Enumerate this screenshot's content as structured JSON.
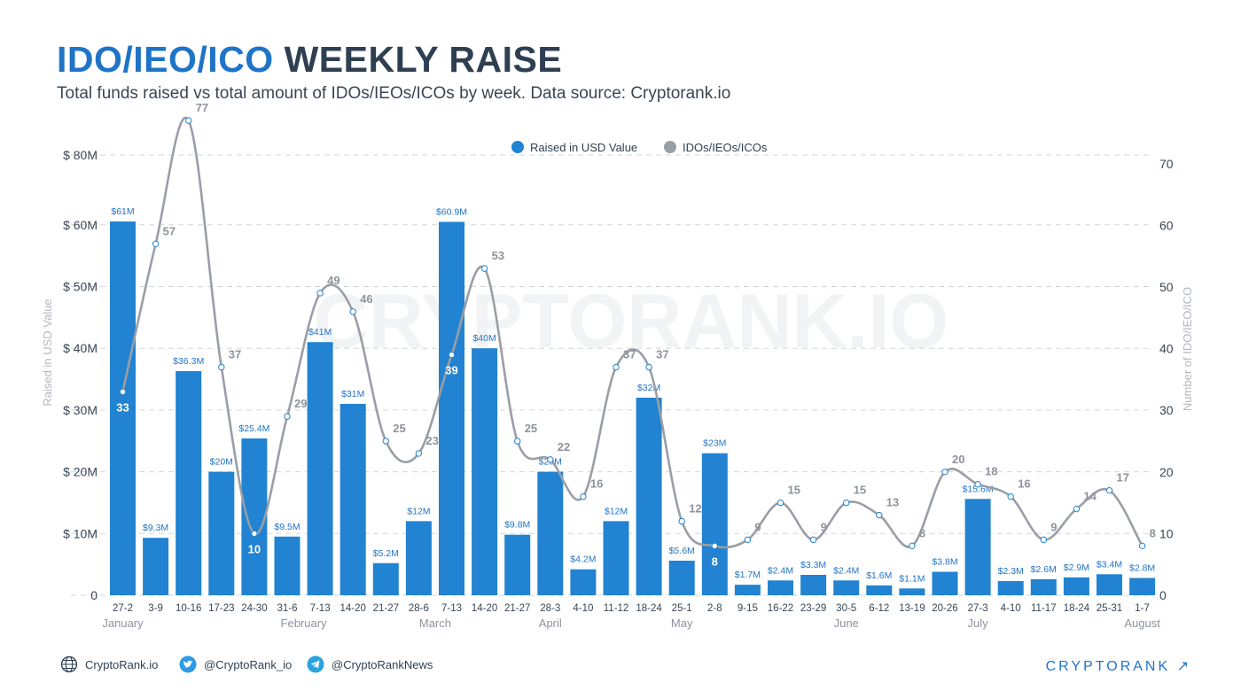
{
  "header": {
    "title_accent": "IDO/IEO/ICO",
    "title_rest": "WEEKLY RAISE",
    "subtitle": "Total funds raised vs total amount of IDOs/IEOs/ICOs by week. Data source: Cryptorank.io"
  },
  "watermark": "CRYPTORANK.IO",
  "footer": {
    "website": "CryptoRank.io",
    "twitter": "@CryptoRank_io",
    "telegram": "@CryptoRankNews",
    "brand": "CRYPTORANK ↗"
  },
  "colors": {
    "bar": "#2183d1",
    "line": "#9a9ea6",
    "accent": "#1f74c8",
    "text_dark": "#2f3f52"
  },
  "chart_data": {
    "type": "bar",
    "ylabel": "Raised in USD Value",
    "y2label": "Number of IDO/IEO/ICO",
    "legend": [
      "Raised in USD Value",
      "IDOs/IEOs/ICOs"
    ],
    "legend_position": "top-center",
    "grid": true,
    "y_ticks": [
      "0",
      "$ 10M",
      "$ 20M",
      "$ 30M",
      "$ 40M",
      "$ 50M",
      "$ 60M",
      "$ 80M"
    ],
    "y2_ticks": [
      "0",
      "10",
      "20",
      "30",
      "40",
      "50",
      "60",
      "70"
    ],
    "categories": [
      "27-2",
      "3-9",
      "10-16",
      "17-23",
      "24-30",
      "31-6",
      "7-13",
      "14-20",
      "21-27",
      "28-6",
      "7-13",
      "14-20",
      "21-27",
      "28-3",
      "4-10",
      "11-12",
      "18-24",
      "25-1",
      "2-8",
      "9-15",
      "16-22",
      "23-29",
      "30-5",
      "6-12",
      "13-19",
      "20-26",
      "27-3",
      "4-10",
      "11-17",
      "18-24",
      "25-31",
      "1-7"
    ],
    "months": [
      {
        "label": "January",
        "index": 0
      },
      {
        "label": "February",
        "index": 5.5
      },
      {
        "label": "March",
        "index": 9.5
      },
      {
        "label": "April",
        "index": 13
      },
      {
        "label": "May",
        "index": 17
      },
      {
        "label": "June",
        "index": 22
      },
      {
        "label": "July",
        "index": 26
      },
      {
        "label": "August",
        "index": 31
      }
    ],
    "series": [
      {
        "name": "Raised in USD Value",
        "type": "bar",
        "values": [
          61,
          9.3,
          36.3,
          20,
          25.4,
          9.5,
          41,
          31,
          5.2,
          12,
          60.9,
          40,
          9.8,
          20,
          4.2,
          12,
          32,
          5.6,
          23,
          1.7,
          2.4,
          3.3,
          2.4,
          1.6,
          1.1,
          3.8,
          15.6,
          2.3,
          2.6,
          2.9,
          3.4,
          2.8
        ],
        "labels": [
          "$61M",
          "$9.3M",
          "$36.3M",
          "$20M",
          "$25.4M",
          "$9.5M",
          "$41M",
          "$31M",
          "$5.2M",
          "$12M",
          "$60.9M",
          "$40M",
          "$9.8M",
          "$20M",
          "$4.2M",
          "$12M",
          "$32M",
          "$5.6M",
          "$23M",
          "$1.7M",
          "$2.4M",
          "$3.3M",
          "$2.4M",
          "$1.6M",
          "$1.1M",
          "$3.8M",
          "$15.6M",
          "$2.3M",
          "$2.6M",
          "$2.9M",
          "$3.4M",
          "$2.8M"
        ]
      },
      {
        "name": "IDOs/IEOs/ICOs",
        "type": "line",
        "values": [
          33,
          57,
          77,
          37,
          10,
          29,
          49,
          46,
          25,
          23,
          39,
          53,
          25,
          22,
          16,
          37,
          37,
          12,
          8,
          9,
          15,
          9,
          15,
          13,
          8,
          20,
          18,
          16,
          9,
          14,
          17,
          8
        ]
      }
    ]
  }
}
